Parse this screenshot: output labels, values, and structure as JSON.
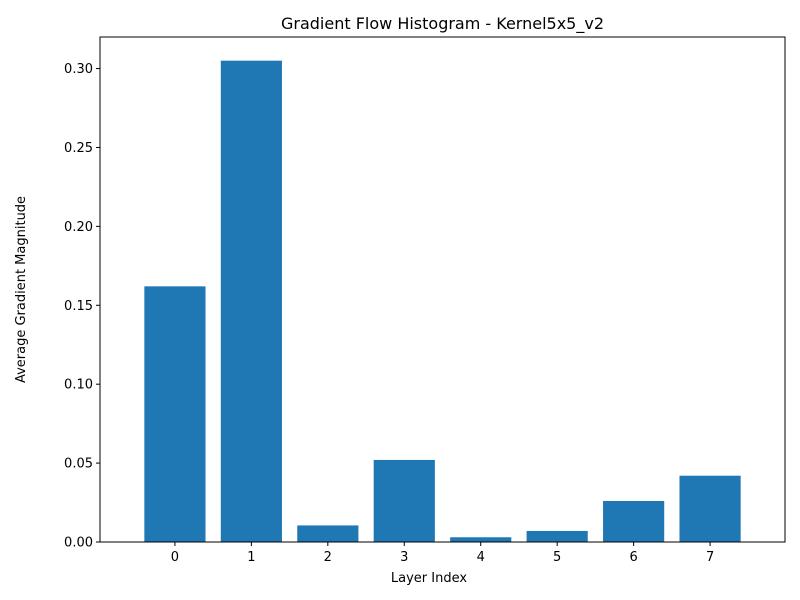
{
  "chart_data": {
    "type": "bar",
    "title": "Gradient Flow Histogram - Kernel5x5_v2",
    "xlabel": "Layer Index",
    "ylabel": "Average Gradient Magnitude",
    "categories": [
      "0",
      "1",
      "2",
      "3",
      "4",
      "5",
      "6",
      "7"
    ],
    "values": [
      0.162,
      0.305,
      0.0105,
      0.052,
      0.003,
      0.007,
      0.026,
      0.042
    ],
    "ylim": [
      0,
      0.32
    ],
    "yticks": [
      "0.00",
      "0.05",
      "0.10",
      "0.15",
      "0.20",
      "0.25",
      "0.30"
    ],
    "bar_color": "#1f77b4",
    "grid": false
  }
}
